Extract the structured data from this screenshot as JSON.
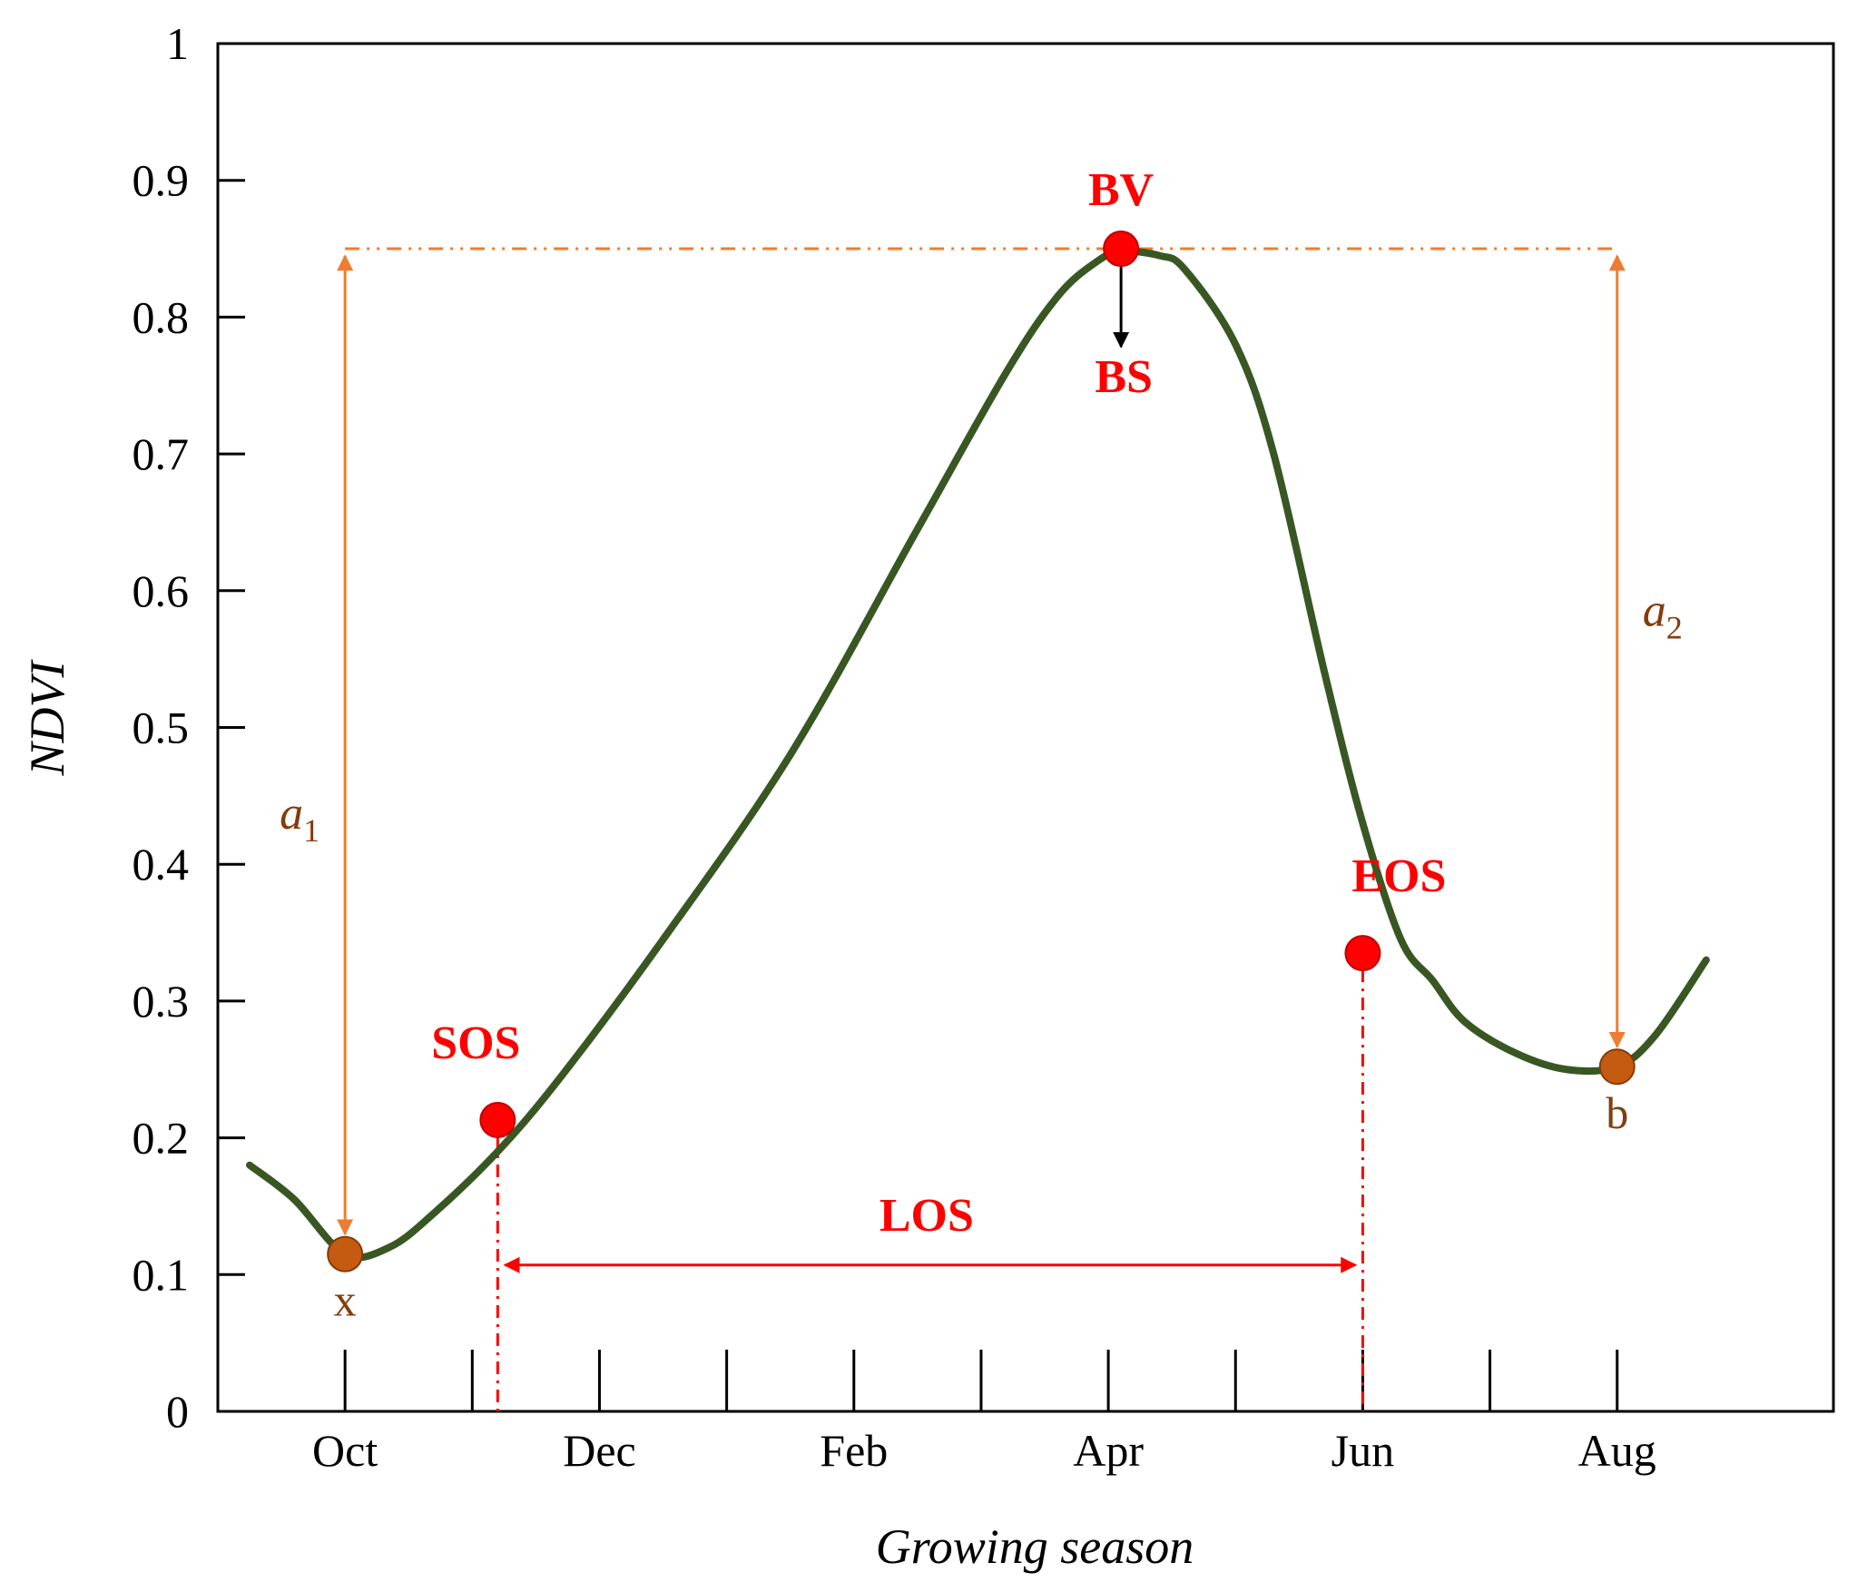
{
  "chart_data": {
    "type": "line",
    "title": "",
    "xlabel": "Growing season",
    "ylabel": "NDVI",
    "ylim": [
      0,
      1
    ],
    "xlim": [
      0,
      12.7
    ],
    "y_ticks": [
      "0",
      "0.1",
      "0.2",
      "0.3",
      "0.4",
      "0.5",
      "0.6",
      "0.7",
      "0.8",
      "0.9",
      "1"
    ],
    "y_tick_values": [
      0,
      0.1,
      0.2,
      0.3,
      0.4,
      0.5,
      0.6,
      0.7,
      0.8,
      0.9,
      1.0
    ],
    "x_minor_ticks": [
      1,
      2,
      3,
      4,
      5,
      6,
      7,
      8,
      9,
      10,
      11
    ],
    "x_labels": [
      {
        "label": "Oct",
        "x": 1
      },
      {
        "label": "Dec",
        "x": 3
      },
      {
        "label": "Feb",
        "x": 5
      },
      {
        "label": "Apr",
        "x": 7
      },
      {
        "label": "Jun",
        "x": 9
      },
      {
        "label": "Aug",
        "x": 11
      }
    ],
    "series": [
      {
        "name": "NDVI curve",
        "color": "#385723",
        "x": [
          0.25,
          0.6,
          1.0,
          1.35,
          1.7,
          2.2,
          2.7,
          3.5,
          4.5,
          5.5,
          6.2,
          6.6,
          6.9,
          7.1,
          7.4,
          7.6,
          8.0,
          8.3,
          8.7,
          9.0,
          9.3,
          9.55,
          9.8,
          10.2,
          10.6,
          11.0,
          11.3,
          11.7
        ],
        "y": [
          0.18,
          0.155,
          0.115,
          0.12,
          0.145,
          0.19,
          0.245,
          0.345,
          0.48,
          0.645,
          0.76,
          0.815,
          0.84,
          0.848,
          0.845,
          0.835,
          0.78,
          0.7,
          0.54,
          0.43,
          0.345,
          0.315,
          0.285,
          0.262,
          0.25,
          0.252,
          0.275,
          0.33
        ]
      }
    ],
    "points": [
      {
        "id": "x",
        "label": "x",
        "x": 1.0,
        "y": 0.115,
        "kind": "amplitude",
        "color": "#C55A11",
        "label_pos": "below"
      },
      {
        "id": "b",
        "label": "b",
        "x": 11.0,
        "y": 0.252,
        "kind": "amplitude",
        "color": "#C55A11",
        "label_pos": "below"
      },
      {
        "id": "sos",
        "label": "SOS",
        "x": 2.2,
        "y": 0.213,
        "kind": "phenology",
        "color": "#FF0000",
        "label_pos": "above-left"
      },
      {
        "id": "eos",
        "label": "EOS",
        "x": 9.0,
        "y": 0.335,
        "kind": "phenology",
        "color": "#FF0000",
        "label_pos": "above-right"
      },
      {
        "id": "bv",
        "label": "BV",
        "x": 7.1,
        "y": 0.85,
        "kind": "phenology",
        "color": "#FF0000",
        "label_pos": "above"
      }
    ],
    "annotations": {
      "bs_label": "BS",
      "los_label": "LOS",
      "los_from_x": 2.2,
      "los_to_x": 9.0,
      "los_y": 0.107,
      "peak_reference_y": 0.85,
      "peak_reference_from_x": 1.0,
      "peak_reference_to_x": 11.0,
      "a1": {
        "base": "a",
        "sub": "1",
        "x": 1.0,
        "from_y": 0.115,
        "to_y": 0.85
      },
      "a2": {
        "base": "a",
        "sub": "2",
        "x": 11.0,
        "from_y": 0.252,
        "to_y": 0.85
      }
    },
    "colors": {
      "curve": "#385723",
      "phenology": "#FF0000",
      "amplitude_line": "#ED7D31",
      "amplitude_point": "#C55A11",
      "amplitude_text": "#843C0C",
      "axis": "#000000"
    }
  }
}
